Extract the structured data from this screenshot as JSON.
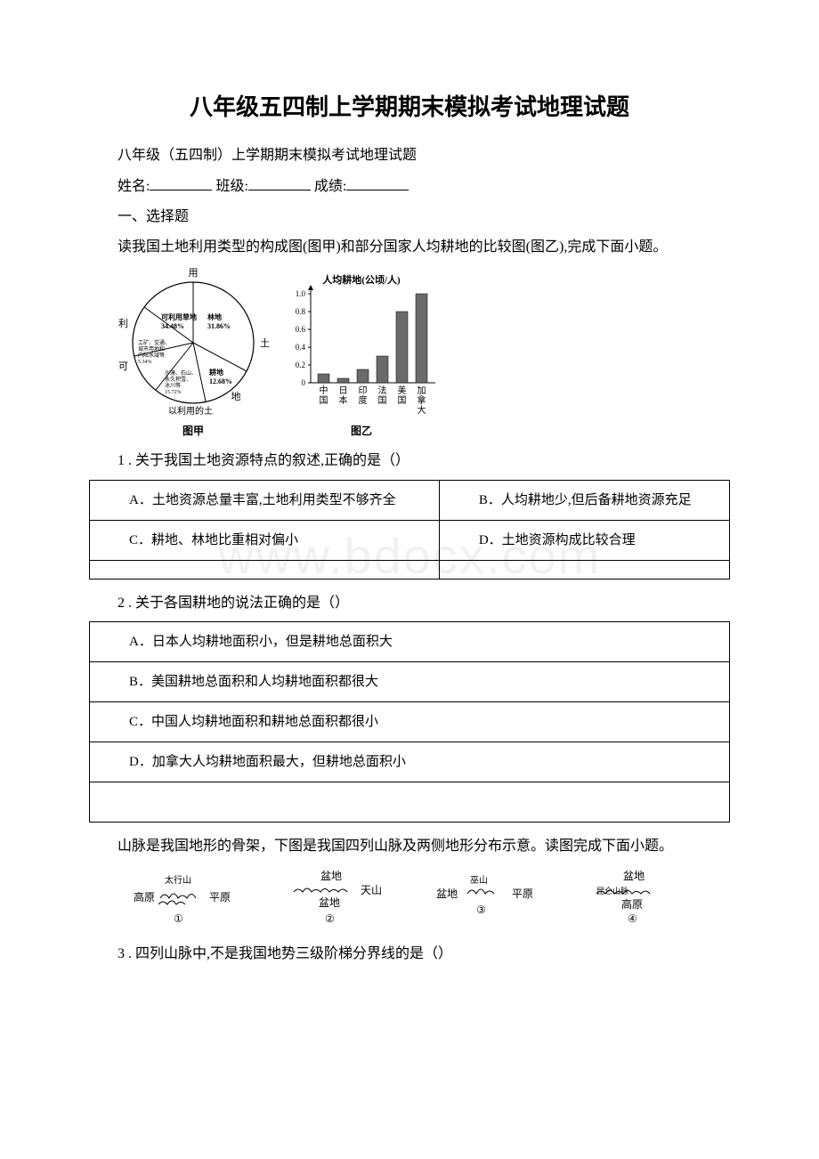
{
  "watermark": "www.bdocx.com",
  "title": "八年级五四制上学期期末模拟考试地理试题",
  "subtitle": "八年级（五四制）上学期期末模拟考试地理试题",
  "form": {
    "name_label": "姓名:",
    "class_label": "班级:",
    "score_label": "成绩:"
  },
  "section1_heading": "一、选择题",
  "passage1": "读我国土地利用类型的构成图(图甲)和部分国家人均耕地的比较图(图乙),完成下面小题。",
  "pie": {
    "top_label": "用",
    "right_label": "土",
    "bottom_label": "地",
    "left_top_label": "利",
    "left_bottom_label": "可",
    "arc_label_prefix": "以利用的土",
    "slices": [
      {
        "label1": "可利用草地",
        "label2": "34.48%"
      },
      {
        "label1": "林地",
        "label2": "31.86%"
      },
      {
        "label1": "耕地",
        "label2": "12.68%"
      },
      {
        "label1": "工矿、交通、",
        "label2": "城市用地和",
        "label3": "内陆水域等",
        "label4": "5.34%"
      },
      {
        "label1": "沙漠、石山、",
        "label2": "永久积雪、",
        "label3": "冰川等",
        "label4": "15.72%"
      }
    ],
    "caption": "图甲"
  },
  "bar": {
    "ylabel": "人均耕地(公顷/人)",
    "yticks": [
      "0",
      "0.2",
      "0.4",
      "0.6",
      "0.8",
      "1.0"
    ],
    "categories": [
      "中国",
      "日本",
      "印度",
      "法国",
      "美国",
      "加拿大"
    ],
    "values": [
      0.1,
      0.05,
      0.15,
      0.3,
      0.8,
      1.0
    ],
    "caption": "图乙",
    "bar_color": "#6a6a6a",
    "axis_color": "#000000"
  },
  "q1": {
    "stem": "1 . 关于我国土地资源特点的叙述,正确的是（）",
    "options": [
      [
        "A．土地资源总量丰富,土地利用类型不够齐全",
        "B．人均耕地少,但后备耕地资源充足"
      ],
      [
        "C．耕地、林地比重相对偏小",
        "D．土地资源构成比较合理"
      ],
      [
        "",
        ""
      ]
    ]
  },
  "q2": {
    "stem": "2 . 关于各国耕地的说法正确的是（）",
    "options": [
      "A．日本人均耕地面积小，但是耕地总面积大",
      "B．美国耕地总面积和人均耕地面积都很大",
      "C．中国人均耕地面积和耕地总面积都很小",
      "D．加拿大人均耕地面积最大，但耕地总面积小",
      ""
    ]
  },
  "passage2": "山脉是我国地形的骨架，下图是我国四列山脉及两侧地形分布示意。读图完成下面小题。",
  "mountains": [
    {
      "left": "高原",
      "right": "平原",
      "top": "太行山",
      "bottom": "①"
    },
    {
      "top": "盆地",
      "middle": "天山",
      "bottom_label": "盆地",
      "num": "②"
    },
    {
      "left": "盆地",
      "right": "平原",
      "top": "巫山",
      "num": "③"
    },
    {
      "top": "盆地",
      "middle": "昆仑山脉",
      "bottom_label": "高原",
      "num": "④"
    }
  ],
  "q3": {
    "stem": "3 . 四列山脉中,不是我国地势三级阶梯分界线的是（）"
  }
}
